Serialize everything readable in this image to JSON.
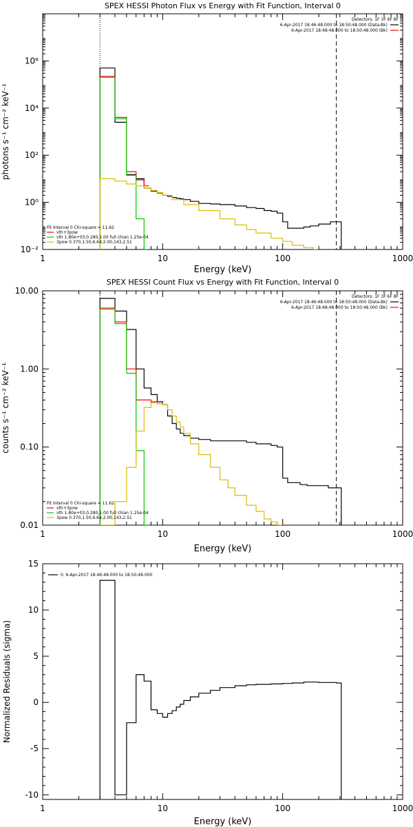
{
  "chart_data": [
    {
      "type": "line",
      "title": "SPEX HESSI Photon Flux vs Energy with Fit Function, Interval 0",
      "xlabel": "Energy (keV)",
      "ylabel": "photons s⁻¹ cm⁻² keV⁻¹",
      "xscale": "log",
      "yscale": "log",
      "xlim": [
        1,
        1000
      ],
      "ylim": [
        0.01,
        100000000
      ],
      "x_ticks": [
        "1",
        "10",
        "100",
        "1000"
      ],
      "y_ticks": [
        "10⁻²",
        "10⁰",
        "10²",
        "10⁴",
        "10⁶"
      ],
      "legend_header": "Detectors: 1F 3F 6F 8F",
      "legend_lines": [
        {
          "text": "6-Apr-2017 18:46:48.000 to 18:50:48.000 (Data-Bk)",
          "color": "#000000"
        },
        {
          "text": "6-Apr-2017 18:48:48.000 to 18:50:48.000 (Bk)",
          "color": "#ff0000"
        }
      ],
      "fit_info": [
        {
          "text": "Fit Interval 0   Chi-square = 11.62",
          "color": null
        },
        {
          "text": "vth+3pow",
          "color": "#ff0000"
        },
        {
          "text": "vth 1.80e+03,0.280,1.00  full chian 1.25e-04",
          "color": "#00cc00"
        },
        {
          "text": "3pow 0.370,1.50,6.64,2.00,143,2.51",
          "color": "#ddbb00"
        }
      ],
      "vlines": [
        3.0,
        280
      ],
      "series": [
        {
          "name": "Data-Bk",
          "color": "#000000",
          "style": "step",
          "x": [
            3,
            4,
            5,
            6,
            7,
            8,
            9,
            10,
            11,
            12,
            13,
            14,
            15,
            17,
            20,
            25,
            30,
            40,
            50,
            60,
            70,
            80,
            90,
            100,
            110,
            130,
            150,
            170,
            200,
            250,
            280
          ],
          "y": [
            500000,
            2500,
            15,
            10,
            4,
            3,
            2.5,
            2,
            1.8,
            1.6,
            1.5,
            1.4,
            1.3,
            1.1,
            0.9,
            0.85,
            0.8,
            0.7,
            0.6,
            0.55,
            0.45,
            0.42,
            0.35,
            0.15,
            0.08,
            0.08,
            0.09,
            0.1,
            0.12,
            0.15,
            0.15
          ]
        },
        {
          "name": "vth+3pow",
          "color": "#ff0000",
          "style": "step",
          "x": [
            3,
            4,
            5,
            6,
            7
          ],
          "y": [
            220000,
            4000,
            20,
            9,
            5
          ]
        },
        {
          "name": "vth",
          "color": "#00cc00",
          "style": "step",
          "x": [
            3,
            4,
            5,
            6,
            7
          ],
          "y": [
            200000,
            3500,
            14,
            0.2,
            0.01
          ]
        },
        {
          "name": "3pow",
          "color": "#ddbb00",
          "style": "step",
          "x": [
            3,
            4,
            5,
            6,
            7,
            8,
            9,
            10,
            12,
            15,
            20,
            30,
            40,
            50,
            60,
            80,
            100,
            120,
            150,
            180
          ],
          "y": [
            10,
            8,
            6,
            5,
            4,
            3.2,
            2.6,
            2,
            1.3,
            0.8,
            0.45,
            0.2,
            0.11,
            0.07,
            0.05,
            0.03,
            0.022,
            0.015,
            0.012,
            0.01
          ]
        }
      ]
    },
    {
      "type": "line",
      "title": "SPEX HESSI Count Flux vs Energy with Fit Function, Interval 0",
      "xlabel": "Energy (keV)",
      "ylabel": "counts s⁻¹ cm⁻² keV⁻¹",
      "xscale": "log",
      "yscale": "log",
      "xlim": [
        1,
        1000
      ],
      "ylim": [
        0.01,
        10
      ],
      "x_ticks": [
        "1",
        "10",
        "100",
        "1000"
      ],
      "y_ticks": [
        "0.01",
        "0.10",
        "1.00",
        "10.00"
      ],
      "legend_header": "Detectors: 1F 3F 6F 8F",
      "legend_lines": [
        {
          "text": "6-Apr-2017 18:46:48.000 to 18:50:48.000 (Data-Bk)",
          "color": "#000000"
        },
        {
          "text": "6-Apr-2017 18:48:48.000 to 18:50:48.000 (Bk)",
          "color": "#ff0000"
        }
      ],
      "fit_info": [
        {
          "text": "Fit Interval 0   Chi-square = 11.62",
          "color": null
        },
        {
          "text": "vth+3pow",
          "color": "#ff0000"
        },
        {
          "text": "vth 1.80e+03,0.280,1.00  full chian 1.25e-04",
          "color": "#00cc00"
        },
        {
          "text": "3pow 0.370,1.50,6.64,2.00,143,2.51",
          "color": "#ddbb00"
        }
      ],
      "vlines": [
        3.0,
        280
      ],
      "series": [
        {
          "name": "Data-Bk",
          "color": "#000000",
          "style": "step",
          "x": [
            3,
            4,
            5,
            6,
            7,
            8,
            9,
            10,
            11,
            12,
            13,
            14,
            15,
            17,
            20,
            25,
            30,
            40,
            50,
            60,
            70,
            80,
            90,
            100,
            110,
            120,
            140,
            160,
            180,
            200,
            240,
            280
          ],
          "y": [
            8,
            5.5,
            3.2,
            1.0,
            0.57,
            0.47,
            0.38,
            0.35,
            0.25,
            0.2,
            0.17,
            0.15,
            0.14,
            0.13,
            0.125,
            0.12,
            0.12,
            0.12,
            0.115,
            0.11,
            0.11,
            0.105,
            0.1,
            0.04,
            0.035,
            0.035,
            0.033,
            0.032,
            0.032,
            0.032,
            0.03,
            0.03
          ]
        },
        {
          "name": "vth+3pow",
          "color": "#ff0000",
          "style": "step",
          "x": [
            3,
            4,
            5,
            6,
            7,
            8,
            9
          ],
          "y": [
            6,
            4.0,
            1.0,
            0.4,
            0.4,
            0.38,
            0.36
          ]
        },
        {
          "name": "vth",
          "color": "#00cc00",
          "style": "step",
          "x": [
            3,
            4,
            5,
            6,
            7
          ],
          "y": [
            5.8,
            3.8,
            0.88,
            0.09,
            0.01
          ]
        },
        {
          "name": "3pow",
          "color": "#ddbb00",
          "style": "step",
          "x": [
            3,
            4,
            5,
            6,
            7,
            8,
            9,
            10,
            11,
            12,
            13,
            14,
            15,
            17,
            20,
            25,
            30,
            35,
            40,
            50,
            60,
            70,
            80,
            90
          ],
          "y": [
            0.01,
            0.02,
            0.055,
            0.16,
            0.32,
            0.37,
            0.36,
            0.35,
            0.3,
            0.25,
            0.21,
            0.18,
            0.15,
            0.11,
            0.08,
            0.055,
            0.038,
            0.03,
            0.024,
            0.018,
            0.015,
            0.012,
            0.011,
            0.01
          ]
        }
      ]
    },
    {
      "type": "line",
      "title": "",
      "xlabel": "Energy (keV)",
      "ylabel": "Normalized Residuals (sigma)",
      "xscale": "log",
      "yscale": "linear",
      "xlim": [
        1,
        1000
      ],
      "ylim": [
        -10.5,
        15
      ],
      "x_ticks": [
        "1",
        "10",
        "100",
        "1000"
      ],
      "y_ticks": [
        "-10",
        "-5",
        "0",
        "5",
        "10",
        "15"
      ],
      "legend_lines": [
        {
          "text": "0. 6-Apr-2017 18:46:48.000 to 18:50:48.000",
          "color": "#000000"
        }
      ],
      "series": [
        {
          "name": "residuals",
          "color": "#000000",
          "style": "step",
          "x": [
            3,
            4,
            5,
            6,
            7,
            8,
            9,
            10,
            11,
            12,
            13,
            14,
            15,
            17,
            20,
            25,
            30,
            40,
            50,
            60,
            80,
            100,
            120,
            150,
            200,
            280
          ],
          "y": [
            13.2,
            -10,
            -2.2,
            3.0,
            2.3,
            -0.8,
            -1.2,
            -1.6,
            -1.2,
            -0.9,
            -0.5,
            -0.2,
            0.2,
            0.6,
            1.0,
            1.3,
            1.6,
            1.8,
            1.9,
            1.95,
            2.0,
            2.05,
            2.1,
            2.2,
            2.15,
            2.1
          ]
        }
      ]
    }
  ]
}
